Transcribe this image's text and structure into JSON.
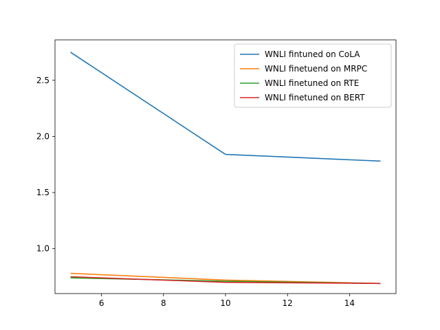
{
  "chart_data": {
    "type": "line",
    "title": "",
    "xlabel": "",
    "ylabel": "",
    "xlim": [
      4.5,
      15.5
    ],
    "ylim": [
      0.6,
      2.86
    ],
    "x_ticks": [
      6,
      8,
      10,
      12,
      14
    ],
    "y_ticks": [
      1.0,
      1.5,
      2.0,
      2.5
    ],
    "x_tick_labels": [
      "6",
      "8",
      "10",
      "12",
      "14"
    ],
    "y_tick_labels": [
      "1.0",
      "1.5",
      "2.0",
      "2.5"
    ],
    "grid": false,
    "legend_position": "top-right",
    "x": [
      5,
      10,
      15
    ],
    "series": [
      {
        "name": "WNLI fintuned on CoLA",
        "color": "#1f77b4",
        "values": [
          2.75,
          1.84,
          1.78
        ]
      },
      {
        "name": "WNLI finetuend on MRPC",
        "color": "#ff7f0e",
        "values": [
          0.78,
          0.72,
          0.69
        ]
      },
      {
        "name": "WNLI finetuned on RTE",
        "color": "#2ca02c",
        "values": [
          0.74,
          0.71,
          0.69
        ]
      },
      {
        "name": "WNLI finetuned on BERT",
        "color": "#d62728",
        "values": [
          0.75,
          0.7,
          0.69
        ]
      }
    ]
  }
}
